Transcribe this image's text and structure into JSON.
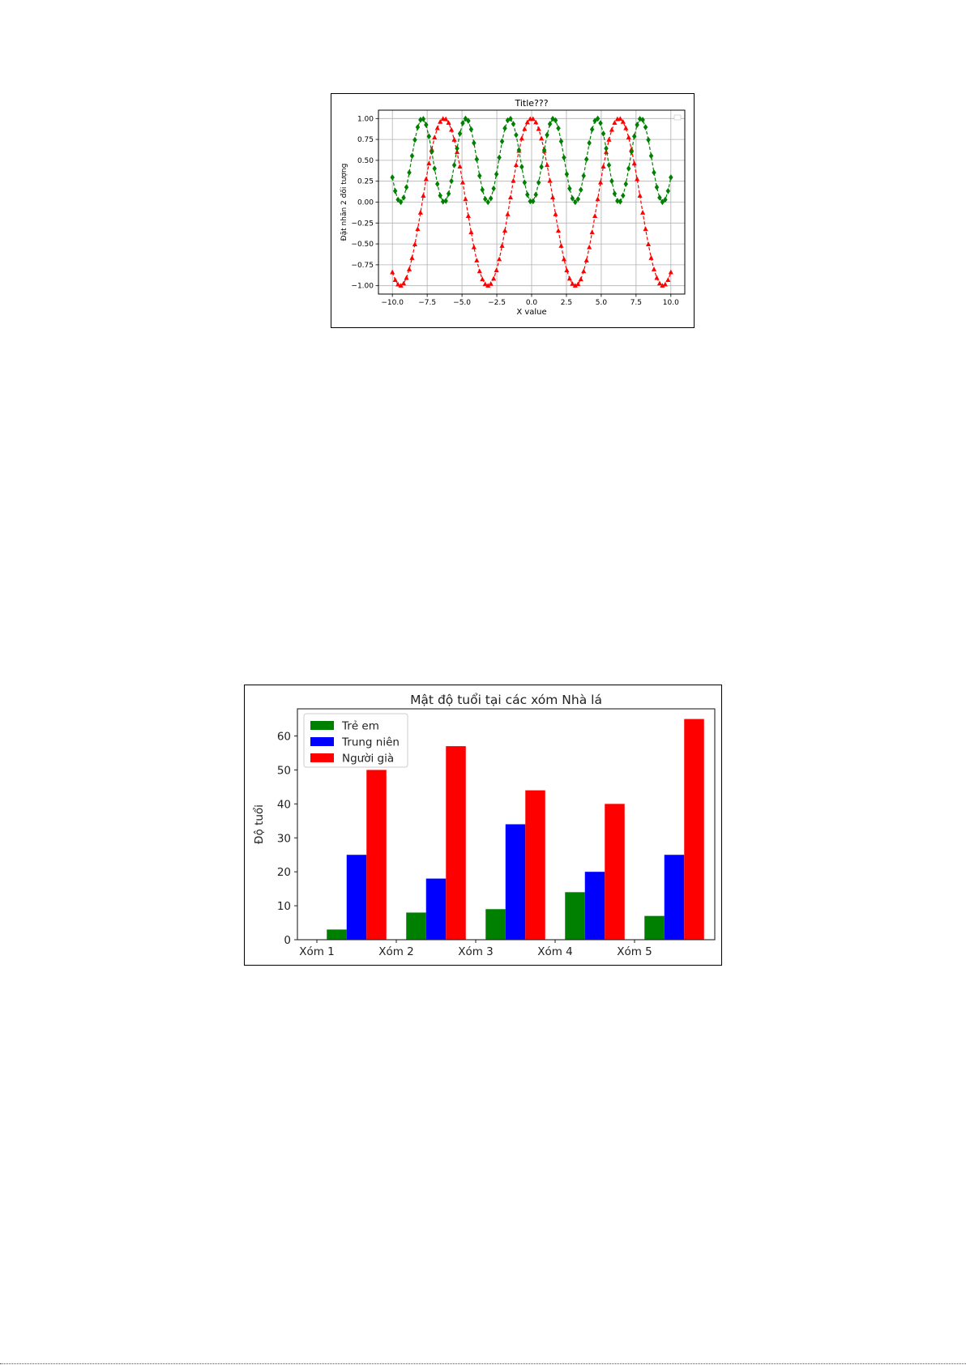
{
  "chart_data": [
    {
      "type": "line",
      "title": "Title???",
      "xlabel": "X value",
      "ylabel": "Đặt nhãn 2 đối tượng",
      "xlim": [
        -11,
        11
      ],
      "ylim": [
        -1.1,
        1.1
      ],
      "xticks": [
        "−10.0",
        "−7.5",
        "−5.0",
        "−2.5",
        "0.0",
        "2.5",
        "5.0",
        "7.5",
        "10.0"
      ],
      "yticks": [
        "−1.00",
        "−0.75",
        "−0.50",
        "−0.25",
        "0.00",
        "0.25",
        "0.50",
        "0.75",
        "1.00"
      ],
      "grid": true,
      "legend": "upper right (empty)",
      "series": [
        {
          "formula": "cos(x)",
          "color": "#ff0000",
          "marker": "triangle",
          "linestyle": "dashed",
          "x_start": -10,
          "x_end": 10,
          "points": 100
        },
        {
          "formula": "sin(x)^2",
          "color": "#008000",
          "marker": "diamond",
          "linestyle": "dashed",
          "x_start": -10,
          "x_end": 10,
          "points": 100
        }
      ]
    },
    {
      "type": "bar",
      "title": "Mật độ tuổi tại các xóm Nhà lá",
      "xlabel": "",
      "ylabel": "Độ tuổi",
      "categories": [
        "Xóm 1",
        "Xóm 2",
        "Xóm 3",
        "Xóm 4",
        "Xóm 5"
      ],
      "ylim": [
        0,
        68
      ],
      "yticks": [
        "0",
        "10",
        "20",
        "30",
        "40",
        "50",
        "60"
      ],
      "grid": false,
      "legend": "upper left",
      "series": [
        {
          "name": "Trẻ em",
          "color": "#008000",
          "values": [
            3,
            8,
            9,
            14,
            7
          ]
        },
        {
          "name": "Trung niên",
          "color": "#0000ff",
          "values": [
            25,
            18,
            34,
            20,
            25
          ]
        },
        {
          "name": "Người già",
          "color": "#ff0000",
          "values": [
            50,
            57,
            44,
            40,
            65
          ]
        }
      ]
    }
  ]
}
